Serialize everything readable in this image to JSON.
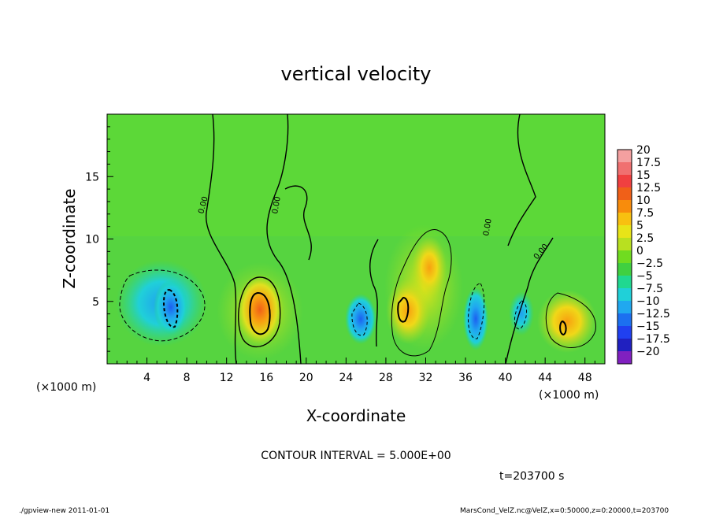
{
  "chart_data": {
    "type": "heatmap",
    "title": "vertical velocity",
    "xlabel": "X-coordinate",
    "ylabel": "Z-coordinate",
    "x_unit": "(×1000 m)",
    "y_unit": "(×1000 m)",
    "xlim": [
      0,
      50
    ],
    "ylim": [
      0,
      20
    ],
    "x_ticks": [
      4,
      8,
      12,
      16,
      20,
      24,
      28,
      32,
      36,
      40,
      44,
      48
    ],
    "y_ticks": [
      5,
      10,
      15
    ],
    "contour_interval_text": "CONTOUR INTERVAL = 5.000E+00",
    "contour_label": "0.00",
    "time_text": "t=203700 s",
    "colorbar": {
      "levels": [
        20,
        17.5,
        15,
        12.5,
        10,
        7.5,
        5,
        2.5,
        0,
        -2.5,
        -5,
        -7.5,
        -10,
        -12.5,
        -15,
        -17.5,
        -20
      ],
      "colors": [
        "#f4a0a0",
        "#f07070",
        "#f04040",
        "#f06018",
        "#f88c0c",
        "#f8c010",
        "#e8e418",
        "#b8e020",
        "#70dc20",
        "#40d040",
        "#20d890",
        "#20d0d8",
        "#20a8f0",
        "#1c70f0",
        "#2040f0",
        "#2020c0",
        "#8020c0"
      ]
    },
    "updrafts": [
      {
        "x": 15.5,
        "z": 4.8,
        "peak": 12.5
      },
      {
        "x": 30,
        "z": 5,
        "peak": 10
      },
      {
        "x": 31.5,
        "z": 8,
        "peak": 5
      },
      {
        "x": 46,
        "z": 3.5,
        "peak": 10
      }
    ],
    "downdrafts": [
      {
        "x": 6.5,
        "z": 4.5,
        "peak": -12.5
      },
      {
        "x": 25.5,
        "z": 3.5,
        "peak": -10
      },
      {
        "x": 36.5,
        "z": 3,
        "peak": -10
      },
      {
        "x": 41.5,
        "z": 4,
        "peak": -5
      }
    ]
  },
  "footer": {
    "left": "./gpview-new   2011-01-01",
    "right": "MarsCond_VelZ.nc@VelZ,x=0:50000,z=0:20000,t=203700"
  }
}
